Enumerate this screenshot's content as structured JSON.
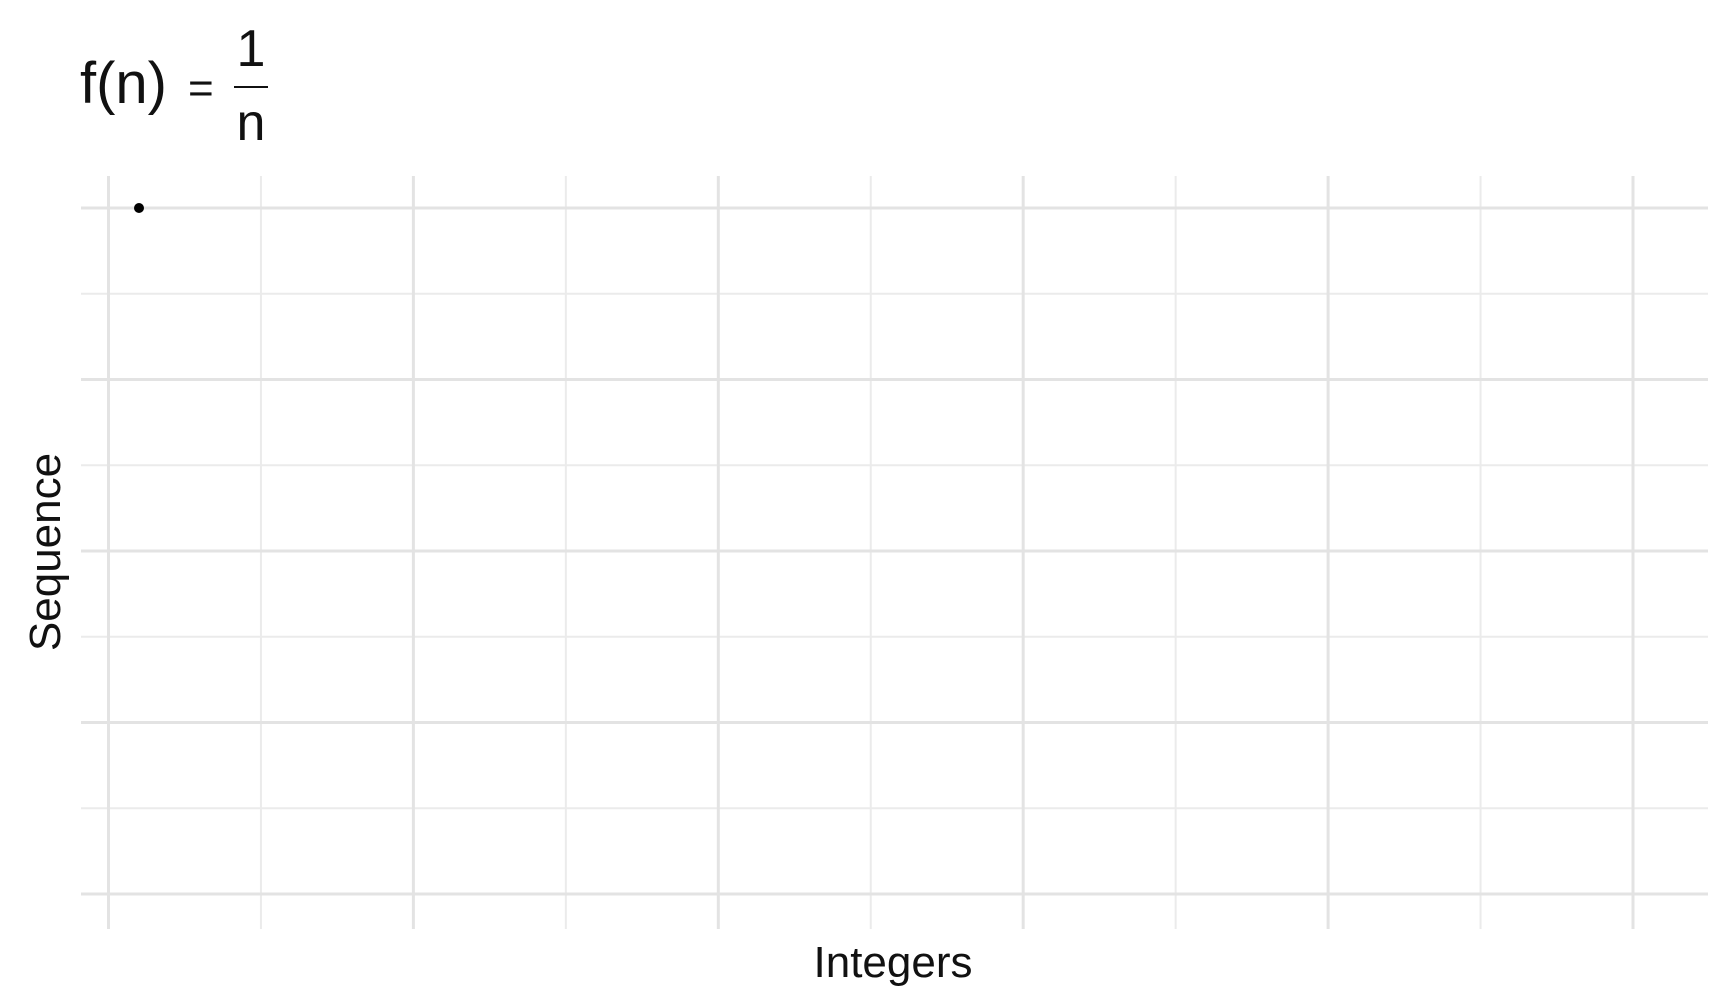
{
  "chart_data": {
    "type": "scatter",
    "title": {
      "lhs": "f(n)",
      "equals": "=",
      "numerator": "1",
      "denominator": "n"
    },
    "xlabel": "Integers",
    "ylabel": "Sequence",
    "xlim": [
      1,
      50
    ],
    "ylim": [
      0,
      1
    ],
    "x_tick_labels_shown": false,
    "y_tick_labels_shown": false,
    "grid": true,
    "series": [
      {
        "points": [
          {
            "x": 1,
            "y": 1.0
          }
        ]
      }
    ],
    "colors": {
      "point": "#000000",
      "grid_major": "#e3e3e3",
      "grid_minor": "#ebebeb",
      "background": "#ffffff"
    }
  }
}
